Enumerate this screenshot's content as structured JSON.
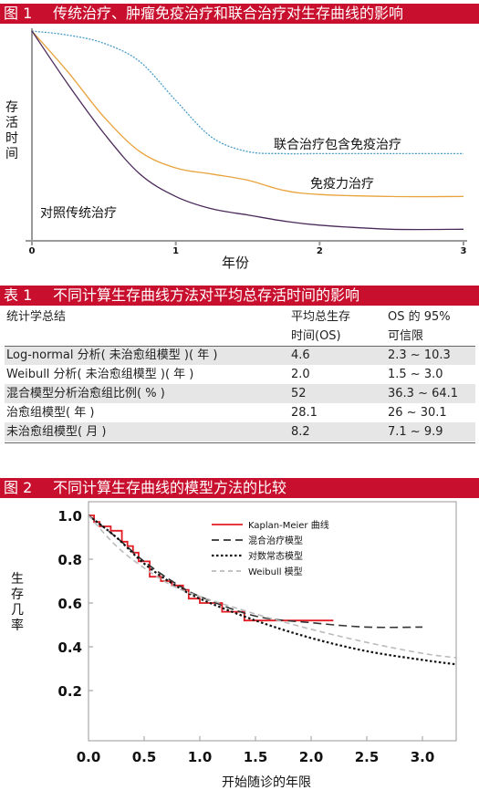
{
  "figure1": {
    "label": "图 1",
    "title": "传统治疗、肿瘤免疫治疗和联合治疗对生存曲线的影响",
    "ylabel_chars": [
      "存",
      "活",
      "时",
      "间"
    ],
    "xlabel": "年份",
    "x_ticks": [
      "0",
      "1",
      "2",
      "3"
    ],
    "annotations": {
      "combined": "联合治疗包含免疫治疗",
      "immuno": "免疫力治疗",
      "control": "对照传统治疗"
    },
    "colors": {
      "combined": "#4a9ec9",
      "immuno": "#e8a33c",
      "control": "#4b2a5a"
    }
  },
  "table1": {
    "label": "表 1",
    "title": "不同计算生存曲线方法对平均总存活时间的影响",
    "headers": {
      "col1": "统计学总结",
      "col2_line1": "平均总生存",
      "col2_line2": "时间(OS)",
      "col3_line1": "OS 的 95%",
      "col3_line2": "可信限"
    },
    "rows": [
      {
        "name": "Log-normal  分析( 未治愈组模型 )( 年 )",
        "mean": "4.6",
        "ci": "2.3  ~  10.3"
      },
      {
        "name": "Weibull  分析( 未治愈组模型 )( 年 )",
        "mean": "2.0",
        "ci": "1.5  ~  3.0"
      },
      {
        "name": "混合模型分析治愈组比例( % )",
        "mean": "52",
        "ci": "36.3  ~  64.1"
      },
      {
        "name": "治愈组模型( 年 )",
        "mean": "28.1",
        "ci": "26  ~  30.1"
      },
      {
        "name": "未治愈组模型( 月 )",
        "mean": "8.2",
        "ci": "7.1  ~  9.9"
      }
    ]
  },
  "figure2": {
    "label": "图 2",
    "title": "不同计算生存曲线的模型方法的比较",
    "ylabel_chars": [
      "生",
      "存",
      "几",
      "率"
    ],
    "xlabel": "开始随诊的年限",
    "x_ticks": [
      "0.0",
      "0.5",
      "1.0",
      "1.5",
      "2.0",
      "2.5",
      "3.0"
    ],
    "y_ticks": [
      "1.0",
      "0.8",
      "0.6",
      "0.4",
      "0.2"
    ],
    "legend": [
      {
        "label": "Kaplan-Meier 曲线",
        "style": "solid",
        "color": "#e31b23"
      },
      {
        "label": "混合治疗模型",
        "style": "dashed",
        "color": "#333333"
      },
      {
        "label": "对数常态模型",
        "style": "dotted",
        "color": "#111111"
      },
      {
        "label": "Weibull 模型",
        "style": "dashed-light",
        "color": "#bbbbbb"
      }
    ]
  },
  "chart_data": [
    {
      "type": "line",
      "title": "传统治疗、肿瘤免疫治疗和联合治疗对生存曲线的影响",
      "xlabel": "年份",
      "ylabel": "存活时间",
      "xlim": [
        0,
        3
      ],
      "x_ticks": [
        0,
        1,
        2,
        3
      ],
      "series": [
        {
          "name": "联合治疗包含免疫治疗",
          "x": [
            0,
            0.25,
            0.5,
            0.75,
            1.0,
            1.25,
            1.5,
            1.75,
            2.0,
            2.5,
            3.0
          ],
          "y": [
            1.0,
            0.98,
            0.94,
            0.85,
            0.66,
            0.48,
            0.41,
            0.4,
            0.4,
            0.4,
            0.4
          ]
        },
        {
          "name": "免疫力治疗",
          "x": [
            0,
            0.25,
            0.5,
            0.75,
            1.0,
            1.25,
            1.5,
            1.75,
            2.0,
            2.5,
            3.0
          ],
          "y": [
            1.0,
            0.8,
            0.58,
            0.41,
            0.33,
            0.3,
            0.27,
            0.22,
            0.2,
            0.19,
            0.19
          ]
        },
        {
          "name": "对照传统治疗",
          "x": [
            0,
            0.25,
            0.5,
            0.75,
            1.0,
            1.25,
            1.5,
            1.75,
            2.0,
            2.5,
            3.0
          ],
          "y": [
            1.0,
            0.74,
            0.5,
            0.3,
            0.19,
            0.13,
            0.1,
            0.07,
            0.05,
            0.03,
            0.03
          ]
        }
      ]
    },
    {
      "type": "line",
      "title": "不同计算生存曲线的模型方法的比较",
      "xlabel": "开始随诊的年限",
      "ylabel": "生存几率",
      "xlim": [
        0,
        3.3
      ],
      "ylim": [
        0.2,
        1.05
      ],
      "series": [
        {
          "name": "Kaplan-Meier 曲线",
          "x": [
            0,
            0.05,
            0.05,
            0.1,
            0.1,
            0.2,
            0.2,
            0.3,
            0.3,
            0.35,
            0.35,
            0.4,
            0.4,
            0.45,
            0.45,
            0.55,
            0.55,
            0.65,
            0.65,
            0.75,
            0.75,
            0.85,
            0.85,
            0.9,
            0.9,
            1.0,
            1.0,
            1.2,
            1.2,
            1.4,
            1.4,
            2.2
          ],
          "y": [
            1.0,
            1.0,
            0.97,
            0.97,
            0.95,
            0.95,
            0.93,
            0.93,
            0.88,
            0.88,
            0.86,
            0.86,
            0.83,
            0.83,
            0.79,
            0.79,
            0.72,
            0.72,
            0.7,
            0.7,
            0.68,
            0.68,
            0.66,
            0.66,
            0.62,
            0.62,
            0.6,
            0.6,
            0.56,
            0.56,
            0.52,
            0.52
          ]
        },
        {
          "name": "混合治疗模型",
          "x": [
            0,
            0.25,
            0.5,
            0.75,
            1.0,
            1.5,
            2.0,
            2.5,
            3.0
          ],
          "y": [
            1.0,
            0.9,
            0.79,
            0.7,
            0.63,
            0.54,
            0.51,
            0.49,
            0.49
          ]
        },
        {
          "name": "对数常态模型",
          "x": [
            0,
            0.25,
            0.5,
            0.75,
            1.0,
            1.5,
            2.0,
            2.5,
            3.0,
            3.3
          ],
          "y": [
            1.0,
            0.9,
            0.78,
            0.69,
            0.62,
            0.52,
            0.44,
            0.38,
            0.34,
            0.32
          ]
        },
        {
          "name": "Weibull 模型",
          "x": [
            0,
            0.25,
            0.5,
            0.75,
            1.0,
            1.5,
            2.0,
            2.5,
            3.0,
            3.3
          ],
          "y": [
            1.0,
            0.86,
            0.76,
            0.68,
            0.63,
            0.55,
            0.48,
            0.42,
            0.37,
            0.35
          ]
        }
      ]
    }
  ]
}
